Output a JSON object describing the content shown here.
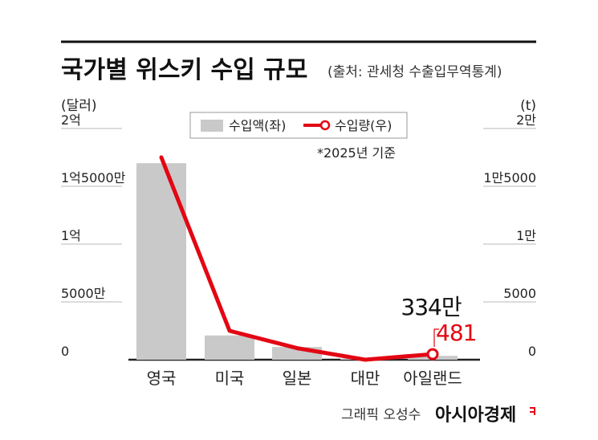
{
  "header": {
    "title": "국가별 위스키 수입 규모",
    "source": "(출처: 관세청 수출입무역통계)"
  },
  "note": "*2025년 기준",
  "credit": {
    "text": "그래픽 오성수",
    "brand": "아시아경제"
  },
  "colors": {
    "bar": "#c9c9c9",
    "line": "#e30613",
    "text": "#111111"
  },
  "chart_data": {
    "type": "bar",
    "categories": [
      "영국",
      "미국",
      "일본",
      "대만",
      "아일랜드"
    ],
    "series": [
      {
        "name": "수입액(좌)",
        "type": "bar",
        "axis": "left",
        "unit": "달러",
        "values": [
          170000000,
          21000000,
          11000000,
          1000000,
          3340000
        ]
      },
      {
        "name": "수입량(우)",
        "type": "line",
        "axis": "right",
        "unit": "t",
        "values": [
          17500,
          2500,
          1000,
          0,
          481
        ]
      }
    ],
    "left_axis": {
      "unit_label": "(달러)",
      "ylim": [
        0,
        200000000
      ],
      "ticks": [
        {
          "value": 0,
          "label": "0"
        },
        {
          "value": 50000000,
          "label": "5000만"
        },
        {
          "value": 100000000,
          "label": "1억"
        },
        {
          "value": 150000000,
          "label": "1억5000만"
        },
        {
          "value": 200000000,
          "label": "2억"
        }
      ]
    },
    "right_axis": {
      "unit_label": "(t)",
      "ylim": [
        0,
        20000
      ],
      "ticks": [
        {
          "value": 0,
          "label": "0"
        },
        {
          "value": 5000,
          "label": "5000"
        },
        {
          "value": 10000,
          "label": "1만"
        },
        {
          "value": 15000,
          "label": "1만5000"
        },
        {
          "value": 20000,
          "label": "2만"
        }
      ]
    },
    "annotations": [
      {
        "category": "아일랜드",
        "series": "수입액(좌)",
        "text": "334만"
      },
      {
        "category": "아일랜드",
        "series": "수입량(우)",
        "text": "481"
      }
    ],
    "grid": true,
    "legend": "top-center"
  }
}
